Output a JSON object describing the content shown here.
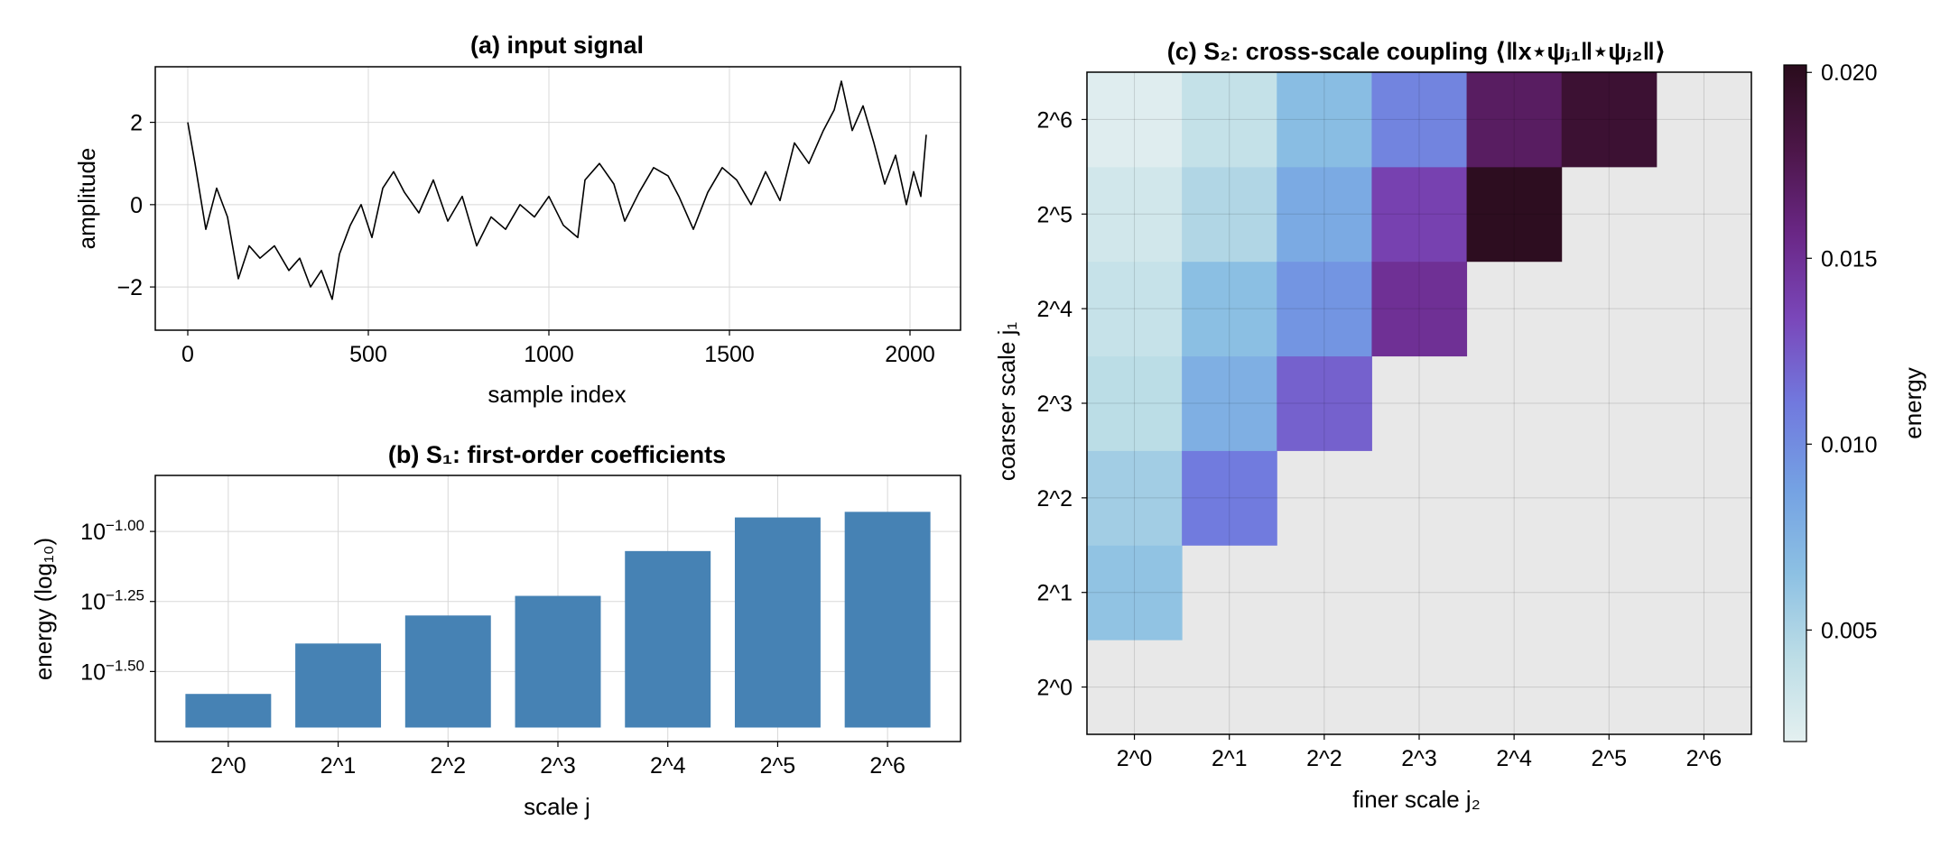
{
  "chart_data": [
    {
      "type": "line",
      "title": "(a) input signal",
      "xlabel": "sample index",
      "ylabel": "amplitude",
      "xlim": [
        -90,
        2140
      ],
      "ylim": [
        -3.05,
        3.35
      ],
      "xticks": [
        0,
        500,
        1000,
        1500,
        2000
      ],
      "xtick_labels": [
        "0",
        "500",
        "1000",
        "1500",
        "2000"
      ],
      "yticks": [
        -2,
        0,
        2
      ],
      "ytick_labels": [
        "−2",
        "0",
        "2"
      ],
      "grid": true,
      "color": "#000000",
      "series": [
        {
          "x": [
            0,
            20,
            50,
            80,
            110,
            140,
            170,
            200,
            240,
            280,
            310,
            340,
            370,
            400,
            420,
            450,
            480,
            510,
            540,
            570,
            600,
            640,
            680,
            720,
            760,
            800,
            840,
            880,
            920,
            960,
            1000,
            1040,
            1080,
            1100,
            1140,
            1180,
            1210,
            1250,
            1290,
            1330,
            1360,
            1400,
            1440,
            1480,
            1520,
            1560,
            1600,
            1640,
            1680,
            1720,
            1760,
            1790,
            1810,
            1840,
            1870,
            1900,
            1930,
            1960,
            1990,
            2010,
            2030,
            2045
          ],
          "y": [
            2.0,
            1.0,
            -0.6,
            0.4,
            -0.3,
            -1.8,
            -1.0,
            -1.3,
            -1.0,
            -1.6,
            -1.3,
            -2.0,
            -1.6,
            -2.3,
            -1.2,
            -0.5,
            0.0,
            -0.8,
            0.4,
            0.8,
            0.3,
            -0.2,
            0.6,
            -0.4,
            0.2,
            -1.0,
            -0.3,
            -0.6,
            0.0,
            -0.3,
            0.2,
            -0.5,
            -0.8,
            0.6,
            1.0,
            0.5,
            -0.4,
            0.3,
            0.9,
            0.7,
            0.2,
            -0.6,
            0.3,
            0.9,
            0.6,
            0.0,
            0.8,
            0.1,
            1.5,
            1.0,
            1.8,
            2.3,
            3.0,
            1.8,
            2.4,
            1.5,
            0.5,
            1.2,
            0.0,
            0.8,
            0.2,
            1.7
          ]
        }
      ]
    },
    {
      "type": "bar",
      "title": "(b) S₁: first-order coefficients",
      "xlabel": "scale  j",
      "ylabel": "energy (log₁₀)",
      "categories": [
        "2^0",
        "2^1",
        "2^2",
        "2^3",
        "2^4",
        "2^5",
        "2^6"
      ],
      "values": [
        -1.58,
        -1.4,
        -1.3,
        -1.23,
        -1.07,
        -0.95,
        -0.93
      ],
      "ylim": [
        -1.75,
        -0.8
      ],
      "baseline": -1.7,
      "yticks": [
        -1.5,
        -1.25,
        -1.0
      ],
      "ytick_labels": [
        {
          "base": "10",
          "exp": "−1.50"
        },
        {
          "base": "10",
          "exp": "−1.25"
        },
        {
          "base": "10",
          "exp": "−1.00"
        }
      ],
      "grid": true,
      "color": "#4682b4"
    },
    {
      "type": "heatmap",
      "title": "(c) S₂: cross-scale coupling ⟨‖x⋆ψⱼ₁‖⋆ψⱼ₂‖⟩",
      "xlabel": "finer scale  j₂",
      "ylabel": "coarser scale  j₁",
      "x_categories": [
        "2^0",
        "2^1",
        "2^2",
        "2^3",
        "2^4",
        "2^5",
        "2^6"
      ],
      "y_categories": [
        "2^0",
        "2^1",
        "2^2",
        "2^3",
        "2^4",
        "2^5",
        "2^6"
      ],
      "cells": [
        {
          "j2": 0,
          "j1": 1,
          "value": 0.0063
        },
        {
          "j2": 0,
          "j1": 2,
          "value": 0.0055
        },
        {
          "j2": 0,
          "j1": 3,
          "value": 0.0043
        },
        {
          "j2": 0,
          "j1": 4,
          "value": 0.0037
        },
        {
          "j2": 0,
          "j1": 5,
          "value": 0.0031
        },
        {
          "j2": 0,
          "j1": 6,
          "value": 0.0023
        },
        {
          "j2": 1,
          "j1": 2,
          "value": 0.011
        },
        {
          "j2": 1,
          "j1": 3,
          "value": 0.0078
        },
        {
          "j2": 1,
          "j1": 4,
          "value": 0.0066
        },
        {
          "j2": 1,
          "j1": 5,
          "value": 0.0048
        },
        {
          "j2": 1,
          "j1": 6,
          "value": 0.0038
        },
        {
          "j2": 2,
          "j1": 3,
          "value": 0.0122
        },
        {
          "j2": 2,
          "j1": 4,
          "value": 0.0095
        },
        {
          "j2": 2,
          "j1": 5,
          "value": 0.0082
        },
        {
          "j2": 2,
          "j1": 6,
          "value": 0.0068
        },
        {
          "j2": 3,
          "j1": 4,
          "value": 0.015
        },
        {
          "j2": 3,
          "j1": 5,
          "value": 0.0138
        },
        {
          "j2": 3,
          "j1": 6,
          "value": 0.0105
        },
        {
          "j2": 4,
          "j1": 5,
          "value": 0.02
        },
        {
          "j2": 4,
          "j1": 6,
          "value": 0.017
        },
        {
          "j2": 5,
          "j1": 6,
          "value": 0.019
        }
      ],
      "empty_color": "#e8e8e8",
      "colorbar": {
        "label": "energy",
        "range": [
          0.002,
          0.0202
        ],
        "ticks": [
          0.005,
          0.01,
          0.015,
          0.02
        ],
        "tick_labels": [
          "0.005",
          "0.010",
          "0.015",
          "0.020"
        ],
        "stops": [
          "#e4f0f0",
          "#bcdde6",
          "#8cc0e3",
          "#74a1e3",
          "#7179de",
          "#7a47ba",
          "#6a2786",
          "#4c1648",
          "#2a0c1c"
        ]
      },
      "grid": true
    }
  ]
}
